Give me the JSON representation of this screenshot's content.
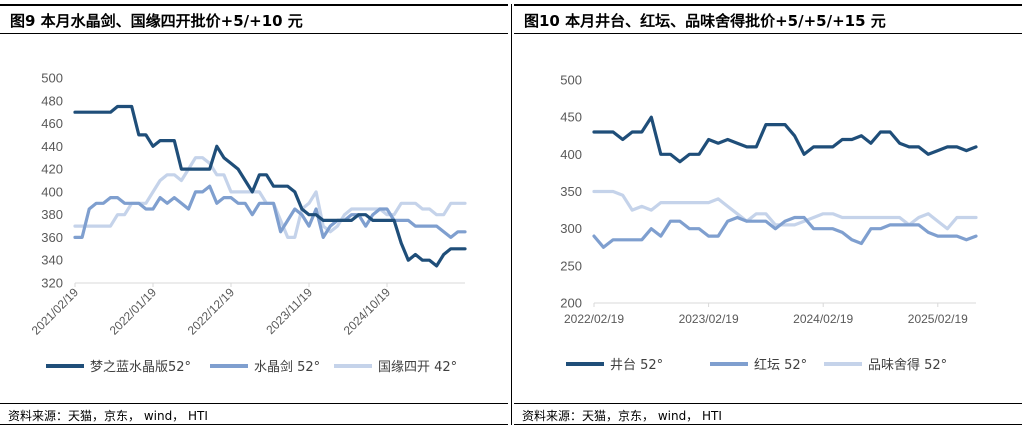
{
  "left": {
    "title": "图9   本月水晶剑、国缘四开批价+5/+10 元",
    "source": "资料来源：天猫，京东， wind， HTI"
  },
  "right": {
    "title": "图10 本月井台、红坛、品味舍得批价+5/+5/+15 元",
    "source": "资料来源：天猫，京东， wind， HTI"
  },
  "chart_data": [
    {
      "type": "line",
      "ylim": [
        320,
        500
      ],
      "yticks": [
        320,
        340,
        360,
        380,
        400,
        420,
        440,
        460,
        480,
        500
      ],
      "xtick_labels": [
        "2021/02/19",
        "2022/01/19",
        "2022/12/19",
        "2023/11/19",
        "2024/10/19"
      ],
      "xtick_index": [
        0,
        11,
        22,
        33,
        44
      ],
      "n_points": 56,
      "legend_position": "bottom",
      "series": [
        {
          "name": "梦之蓝水晶版52°",
          "color": "#1f4e79",
          "values": [
            470,
            470,
            470,
            470,
            470,
            470,
            475,
            475,
            475,
            450,
            450,
            440,
            445,
            445,
            445,
            420,
            420,
            420,
            420,
            420,
            440,
            430,
            425,
            420,
            410,
            400,
            415,
            415,
            405,
            405,
            405,
            400,
            385,
            380,
            380,
            375,
            375,
            375,
            375,
            375,
            380,
            380,
            375,
            375,
            375,
            375,
            355,
            340,
            345,
            340,
            340,
            335,
            345,
            350,
            350,
            350
          ]
        },
        {
          "name": "水晶剑 52°",
          "color": "#7f9fcf",
          "values": [
            360,
            360,
            385,
            390,
            390,
            395,
            395,
            390,
            390,
            390,
            385,
            385,
            395,
            390,
            395,
            390,
            385,
            400,
            400,
            405,
            390,
            395,
            395,
            390,
            390,
            380,
            390,
            390,
            390,
            365,
            375,
            385,
            380,
            370,
            385,
            360,
            370,
            375,
            375,
            380,
            380,
            370,
            380,
            385,
            385,
            375,
            375,
            375,
            370,
            370,
            370,
            370,
            365,
            360,
            365,
            365
          ]
        },
        {
          "name": "国缘四开 42°",
          "color": "#c5d3ea",
          "values": [
            370,
            370,
            370,
            370,
            370,
            370,
            380,
            380,
            390,
            390,
            390,
            400,
            410,
            415,
            415,
            410,
            420,
            430,
            430,
            425,
            415,
            415,
            400,
            400,
            400,
            400,
            400,
            390,
            390,
            375,
            360,
            360,
            385,
            390,
            400,
            370,
            365,
            370,
            380,
            385,
            385,
            385,
            385,
            385,
            380,
            380,
            390,
            390,
            390,
            385,
            385,
            380,
            380,
            390,
            390,
            390
          ]
        }
      ]
    },
    {
      "type": "line",
      "ylim": [
        200,
        500
      ],
      "yticks": [
        200,
        250,
        300,
        350,
        400,
        450,
        500
      ],
      "xtick_labels": [
        "2022/02/19",
        "2023/02/19",
        "2024/02/19",
        "2025/02/19"
      ],
      "xtick_index": [
        0,
        12,
        24,
        36
      ],
      "n_points": 41,
      "legend_position": "bottom",
      "series": [
        {
          "name": "井台 52°",
          "color": "#1f4e79",
          "values": [
            430,
            430,
            430,
            420,
            430,
            430,
            450,
            400,
            400,
            390,
            400,
            400,
            420,
            415,
            420,
            415,
            410,
            410,
            440,
            440,
            440,
            425,
            400,
            410,
            410,
            410,
            420,
            420,
            425,
            415,
            430,
            430,
            415,
            410,
            410,
            400,
            405,
            410,
            410,
            405,
            410
          ]
        },
        {
          "name": "红坛 52°",
          "color": "#7f9fcf",
          "values": [
            290,
            275,
            285,
            285,
            285,
            285,
            300,
            290,
            310,
            310,
            300,
            300,
            290,
            290,
            310,
            315,
            310,
            310,
            310,
            300,
            310,
            315,
            315,
            300,
            300,
            300,
            295,
            285,
            280,
            300,
            300,
            305,
            305,
            305,
            305,
            295,
            290,
            290,
            290,
            285,
            290
          ]
        },
        {
          "name": "品味舍得 52°",
          "color": "#c5d3ea",
          "values": [
            350,
            350,
            350,
            345,
            325,
            330,
            325,
            335,
            335,
            335,
            335,
            335,
            335,
            340,
            330,
            320,
            310,
            320,
            320,
            305,
            305,
            305,
            310,
            315,
            320,
            320,
            315,
            315,
            315,
            315,
            315,
            315,
            315,
            305,
            315,
            320,
            310,
            300,
            315,
            315,
            315
          ]
        }
      ]
    }
  ]
}
